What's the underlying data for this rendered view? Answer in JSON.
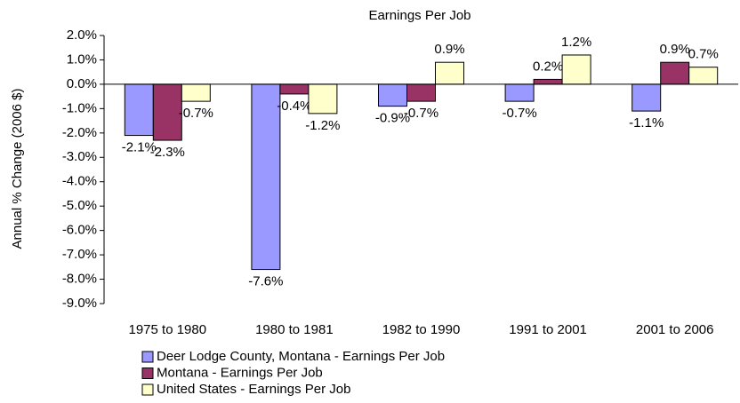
{
  "chart_data": {
    "type": "bar",
    "title": "Earnings Per Job",
    "y_label": "Annual % Change (2006 $)",
    "categories": [
      "1975 to 1980",
      "1980 to 1981",
      "1982 to 1990",
      "1991 to 2001",
      "2001 to 2006"
    ],
    "series": [
      {
        "name": "Deer Lodge County, Montana - Earnings Per Job",
        "color": "#9999ff",
        "values": [
          -2.1,
          -7.6,
          -0.9,
          -0.7,
          -1.1
        ],
        "value_labels": [
          "-2.1%",
          "-7.6%",
          "-0.9%",
          "-0.7%",
          "-1.1%"
        ]
      },
      {
        "name": "Montana - Earnings Per Job",
        "color": "#993366",
        "values": [
          -2.3,
          -0.4,
          -0.7,
          0.2,
          0.9
        ],
        "value_labels": [
          "-2.3%",
          "-0.4%",
          "-0.7%",
          "0.2%",
          "0.9%"
        ]
      },
      {
        "name": "United States - Earnings Per Job",
        "color": "#ffffcc",
        "values": [
          -0.7,
          -1.2,
          0.9,
          1.2,
          0.7
        ],
        "value_labels": [
          "-0.7%",
          "-1.2%",
          "0.9%",
          "1.2%",
          "0.7%"
        ]
      }
    ],
    "ylim": [
      -9,
      2
    ],
    "yticks": [
      {
        "value": -9,
        "label": "-9.0%"
      },
      {
        "value": -8,
        "label": "-8.0%"
      },
      {
        "value": -7,
        "label": "-7.0%"
      },
      {
        "value": -6,
        "label": "-6.0%"
      },
      {
        "value": -5,
        "label": "-5.0%"
      },
      {
        "value": -4,
        "label": "-4.0%"
      },
      {
        "value": -3,
        "label": "-3.0%"
      },
      {
        "value": -2,
        "label": "-2.0%"
      },
      {
        "value": -1,
        "label": "-1.0%"
      },
      {
        "value": 0,
        "label": "0.0%"
      },
      {
        "value": 1,
        "label": "1.0%"
      },
      {
        "value": 2,
        "label": "2.0%"
      }
    ],
    "grid": false,
    "legend": "bottom"
  }
}
